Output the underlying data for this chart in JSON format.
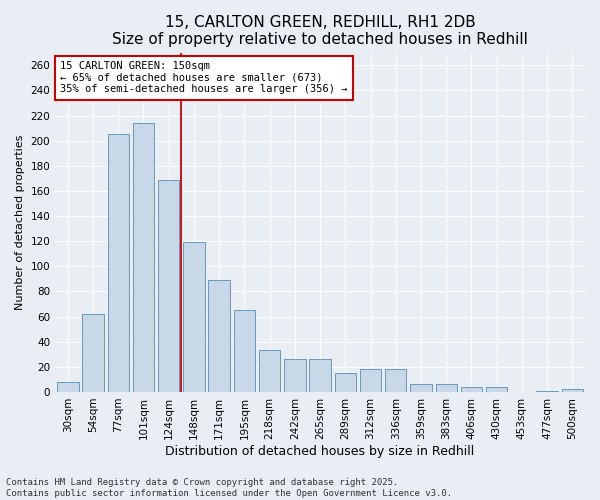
{
  "title": "15, CARLTON GREEN, REDHILL, RH1 2DB",
  "subtitle": "Size of property relative to detached houses in Redhill",
  "xlabel": "Distribution of detached houses by size in Redhill",
  "ylabel": "Number of detached properties",
  "categories": [
    "30sqm",
    "54sqm",
    "77sqm",
    "101sqm",
    "124sqm",
    "148sqm",
    "171sqm",
    "195sqm",
    "218sqm",
    "242sqm",
    "265sqm",
    "289sqm",
    "312sqm",
    "336sqm",
    "359sqm",
    "383sqm",
    "406sqm",
    "430sqm",
    "453sqm",
    "477sqm",
    "500sqm"
  ],
  "values": [
    8,
    62,
    205,
    214,
    169,
    119,
    89,
    65,
    33,
    26,
    26,
    15,
    18,
    18,
    6,
    6,
    4,
    4,
    0,
    1,
    2
  ],
  "bar_color": "#c8d8e8",
  "bar_edge_color": "#6699bb",
  "background_color": "#e8eef4",
  "vline_color": "#cc0000",
  "vline_pos": 4.5,
  "annotation_text": "15 CARLTON GREEN: 150sqm\n← 65% of detached houses are smaller (673)\n35% of semi-detached houses are larger (356) →",
  "annotation_box_color": "#cc0000",
  "ylim": [
    0,
    270
  ],
  "yticks": [
    0,
    20,
    40,
    60,
    80,
    100,
    120,
    140,
    160,
    180,
    200,
    220,
    240,
    260
  ],
  "footer": "Contains HM Land Registry data © Crown copyright and database right 2025.\nContains public sector information licensed under the Open Government Licence v3.0.",
  "title_fontsize": 11,
  "xlabel_fontsize": 9,
  "ylabel_fontsize": 8,
  "tick_fontsize": 7.5,
  "annotation_fontsize": 7.5,
  "footer_fontsize": 6.5
}
